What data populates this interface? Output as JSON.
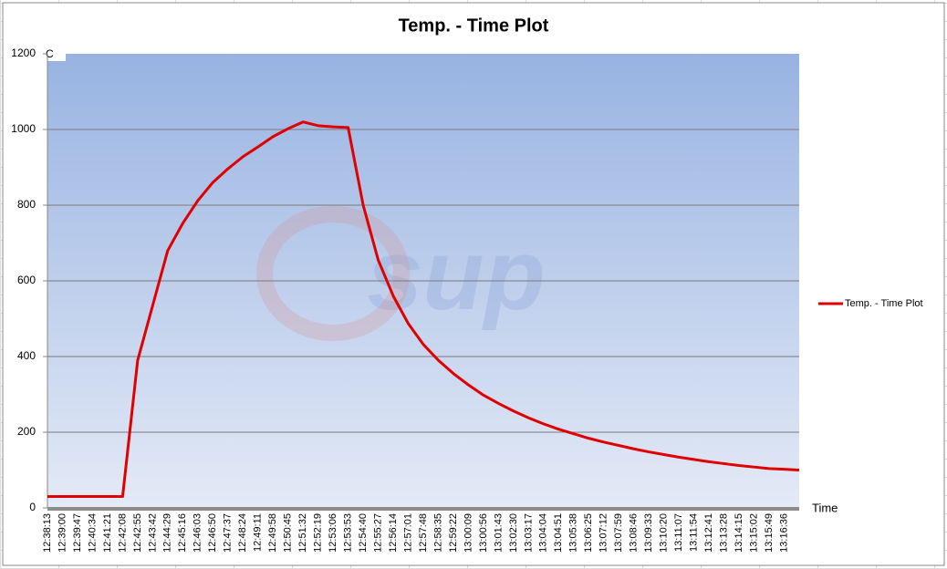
{
  "chart_data": {
    "type": "line",
    "title": "Temp. - Time Plot",
    "y_label": "C",
    "x_label": "Time",
    "watermark": "sup",
    "categories": [
      "12:38:13",
      "12:39:00",
      "12:39:47",
      "12:40:34",
      "12:41:21",
      "12:42:08",
      "12:42:55",
      "12:43:42",
      "12:44:29",
      "12:45:16",
      "12:46:03",
      "12:46:50",
      "12:47:37",
      "12:48:24",
      "12:49:11",
      "12:49:58",
      "12:50:45",
      "12:51:32",
      "12:52:19",
      "12:53:06",
      "12:53:53",
      "12:54:40",
      "12:55:27",
      "12:56:14",
      "12:57:01",
      "12:57:48",
      "12:58:35",
      "12:59:22",
      "13:00:09",
      "13:00:56",
      "13:01:43",
      "13:02:30",
      "13:03:17",
      "13:04:04",
      "13:04:51",
      "13:05:38",
      "13:06:25",
      "13:07:12",
      "13:07:59",
      "13:08:46",
      "13:09:33",
      "13:10:20",
      "13:11:07",
      "13:11:54",
      "13:12:41",
      "13:13:28",
      "13:14:15",
      "13:15:02",
      "13:15:49",
      "13:16:36",
      null
    ],
    "series": [
      {
        "name": "Temp. - Time Plot",
        "color": "#e00000",
        "values": [
          30,
          30,
          30,
          30,
          30,
          30,
          390,
          535,
          680,
          752,
          812,
          860,
          896,
          928,
          954,
          981,
          1002,
          1020,
          1010,
          1007,
          1005,
          800,
          655,
          560,
          487,
          432,
          390,
          355,
          325,
          298,
          276,
          256,
          238,
          222,
          208,
          196,
          184,
          174,
          165,
          156,
          148,
          141,
          134,
          128,
          122,
          117,
          112,
          108,
          104,
          102,
          100
        ]
      }
    ],
    "ylim": [
      0,
      1200
    ],
    "yticks": [
      0,
      200,
      400,
      600,
      800,
      1000,
      1200
    ],
    "grid": true,
    "legend": "right"
  }
}
